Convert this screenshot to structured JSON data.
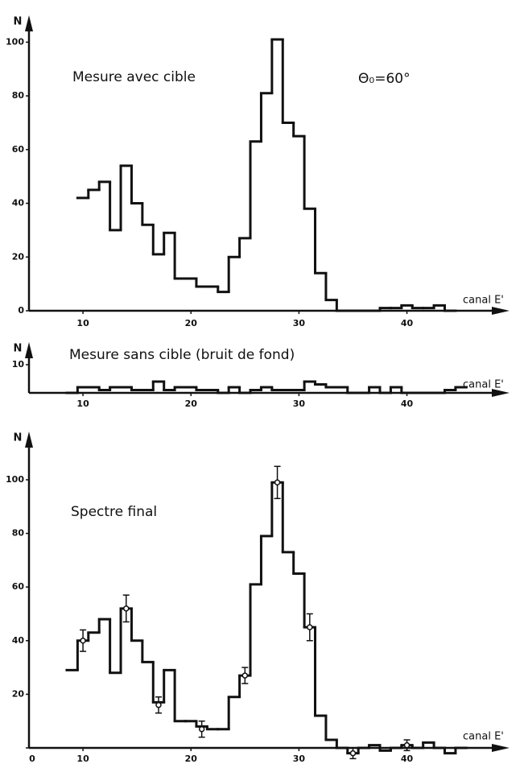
{
  "chart_data": [
    {
      "type": "histogram",
      "title": "Mesure avec cible",
      "annotation": "Θ₀=60°",
      "ylabel": "N",
      "xlabel": "canal E'",
      "bins": [
        9.5,
        10.5,
        11.5,
        12.5,
        13.5,
        14.5,
        15.5,
        16.5,
        17.5,
        18.5,
        19.5,
        20.5,
        21.5,
        22.5,
        23.5,
        24.5,
        25.5,
        26.5,
        27.5,
        28.5,
        29.5,
        30.5,
        31.5,
        32.5,
        33.5,
        34.5,
        35.5,
        36.5,
        37.5,
        38.5,
        39.5,
        40.5,
        41.5,
        42.5,
        43.5,
        44.5
      ],
      "values": [
        42,
        45,
        48,
        30,
        54,
        40,
        32,
        21,
        29,
        12,
        12,
        9,
        9,
        7,
        20,
        27,
        63,
        81,
        101,
        70,
        65,
        38,
        14,
        4,
        0,
        0,
        0,
        0,
        1,
        1,
        2,
        1,
        1,
        2,
        0
      ],
      "color": "#111111",
      "xlim": [
        5,
        49.5
      ],
      "ylim": [
        0,
        110
      ],
      "xticks": [
        10,
        20,
        30,
        40
      ],
      "yticks": [
        0,
        20,
        40,
        60,
        80,
        100
      ]
    },
    {
      "type": "histogram",
      "title": "Mesure sans cible (bruit de fond)",
      "ylabel": "N",
      "xlabel": "canal E'",
      "bins": [
        8.5,
        9.5,
        10.5,
        11.5,
        12.5,
        13.5,
        14.5,
        15.5,
        16.5,
        17.5,
        18.5,
        19.5,
        20.5,
        21.5,
        22.5,
        23.5,
        24.5,
        25.5,
        26.5,
        27.5,
        28.5,
        29.5,
        30.5,
        31.5,
        32.5,
        33.5,
        34.5,
        35.5,
        36.5,
        37.5,
        38.5,
        39.5,
        40.5,
        41.5,
        42.5,
        43.5,
        44.5,
        45.5
      ],
      "values": [
        0,
        2,
        2,
        1,
        2,
        2,
        1,
        1,
        4,
        1,
        2,
        2,
        1,
        1,
        0,
        2,
        0,
        1,
        2,
        1,
        1,
        1,
        4,
        3,
        2,
        2,
        0,
        0,
        2,
        0,
        2,
        0,
        0,
        0,
        0,
        1,
        2
      ],
      "color": "#111111",
      "xlim": [
        5,
        49.5
      ],
      "ylim": [
        0,
        18
      ],
      "xticks": [
        10,
        20,
        30,
        40
      ],
      "yticks": [
        10
      ]
    },
    {
      "type": "histogram",
      "title": "Spectre final",
      "ylabel": "N",
      "xlabel": "canal E'",
      "bins": [
        8.5,
        9.5,
        10.5,
        11.5,
        12.5,
        13.5,
        14.5,
        15.5,
        16.5,
        17.5,
        18.5,
        19.5,
        20.5,
        21.5,
        22.5,
        23.5,
        24.5,
        25.5,
        26.5,
        27.5,
        28.5,
        29.5,
        30.5,
        31.5,
        32.5,
        33.5,
        34.5,
        35.5,
        36.5,
        37.5,
        38.5,
        39.5,
        40.5,
        41.5,
        42.5,
        43.5,
        44.5,
        45.5
      ],
      "values": [
        29,
        40,
        43,
        48,
        28,
        52,
        40,
        32,
        17,
        29,
        10,
        10,
        8,
        7,
        7,
        19,
        27,
        61,
        79,
        99,
        73,
        65,
        45,
        12,
        3,
        0,
        -2,
        0,
        1,
        -1,
        0,
        1,
        0,
        2,
        0,
        -2,
        0
      ],
      "points": {
        "x": [
          10,
          14,
          17,
          21,
          25,
          28,
          31,
          35,
          40
        ],
        "values": [
          40,
          52,
          16,
          7,
          27,
          99,
          45,
          -2,
          1
        ],
        "errors": [
          4,
          5,
          3,
          3,
          3,
          6,
          5,
          2,
          2
        ]
      },
      "color": "#111111",
      "xlim": [
        5,
        49.5
      ],
      "ylim": [
        -3,
        118
      ],
      "xticks": [
        10,
        20,
        30,
        40
      ],
      "yticks": [
        0,
        20,
        40,
        60,
        80,
        100
      ]
    }
  ]
}
